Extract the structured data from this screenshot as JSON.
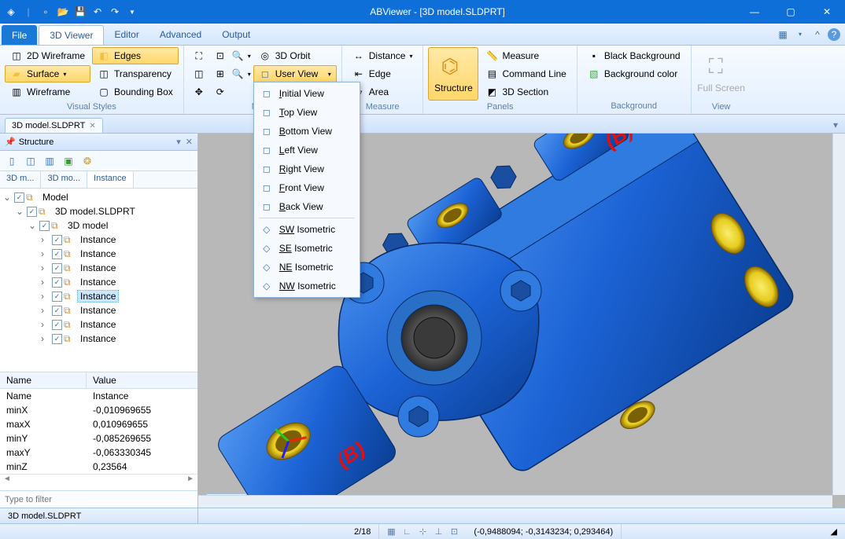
{
  "titlebar": {
    "title": "ABViewer  - [3D model.SLDPRT]"
  },
  "menu": {
    "file": "File",
    "tabs": [
      "3D Viewer",
      "Editor",
      "Advanced",
      "Output"
    ],
    "active": 0
  },
  "ribbon": {
    "visual_styles": {
      "label": "Visual Styles",
      "items": [
        {
          "label": "2D Wireframe",
          "icon": "◫",
          "active": false
        },
        {
          "label": "Edges",
          "icon": "◧",
          "active": true
        },
        {
          "label": "Surface",
          "icon": "▰",
          "active": true,
          "dropdown": true,
          "color": "#f0c23a"
        },
        {
          "label": "Transparency",
          "icon": "◫",
          "active": false
        },
        {
          "label": "Wireframe",
          "icon": "▥",
          "active": false
        },
        {
          "label": "Bounding Box",
          "icon": "▢",
          "active": false
        }
      ]
    },
    "navigation": {
      "label": "Navig",
      "orbit": "3D Orbit",
      "user_view": "User View"
    },
    "measure": {
      "label": "Measure",
      "items": [
        "Distance",
        "Edge",
        "Area"
      ]
    },
    "panels": {
      "label": "Panels",
      "structure": "Structure",
      "items": [
        "Measure",
        "Command Line",
        "3D Section"
      ]
    },
    "background": {
      "label": "Background",
      "items": [
        "Black Background",
        "Background color"
      ]
    },
    "view": {
      "label": "View",
      "fullscreen": "Full Screen"
    }
  },
  "dropdown": {
    "items": [
      {
        "label": "Initial View",
        "u": "I"
      },
      {
        "label": "Top View",
        "u": "T"
      },
      {
        "label": "Bottom View",
        "u": "B"
      },
      {
        "label": "Left View",
        "u": "L"
      },
      {
        "label": "Right View",
        "u": "R"
      },
      {
        "label": "Front View",
        "u": "F"
      },
      {
        "label": "Back View",
        "u": "B"
      }
    ],
    "iso": [
      {
        "label": "SW Isometric",
        "u": "SW"
      },
      {
        "label": "SE Isometric",
        "u": "SE"
      },
      {
        "label": "NE Isometric",
        "u": "NE"
      },
      {
        "label": "NW Isometric",
        "u": "NW"
      }
    ]
  },
  "doctab": {
    "label": "3D model.SLDPRT"
  },
  "structure": {
    "title": "Structure",
    "tabs": [
      "3D m...",
      "3D mo...",
      "Instance"
    ],
    "tree": {
      "root": "Model",
      "file": "3D model.SLDPRT",
      "group": "3D model",
      "instances": [
        "Instance",
        "Instance",
        "Instance",
        "Instance",
        "Instance",
        "Instance",
        "Instance",
        "Instance"
      ],
      "selected_index": 4
    },
    "props": {
      "head": [
        "Name",
        "Value"
      ],
      "rows": [
        [
          "Name",
          "Instance"
        ],
        [
          "minX",
          "-0,010969655"
        ],
        [
          "maxX",
          "0,010969655"
        ],
        [
          "minY",
          "-0,085269655"
        ],
        [
          "maxY",
          "-0,063330345"
        ],
        [
          "minZ",
          "0,23564"
        ]
      ]
    },
    "filter_placeholder": "Type to filter"
  },
  "viewport": {
    "label": "Model",
    "part_color": "#1c63d6",
    "part_dark": "#0a3e93",
    "bolt_color": "#184fa5",
    "brass_light": "#f6e33a",
    "brass_dark": "#b59006",
    "bore_grey": "#696969",
    "annot_color": "#e01010",
    "bg": "#b8b8b8"
  },
  "status": {
    "file": "3D model.SLDPRT",
    "page": "2/18",
    "coords": "(-0,9488094; -0,3143234; 0,293464)"
  }
}
